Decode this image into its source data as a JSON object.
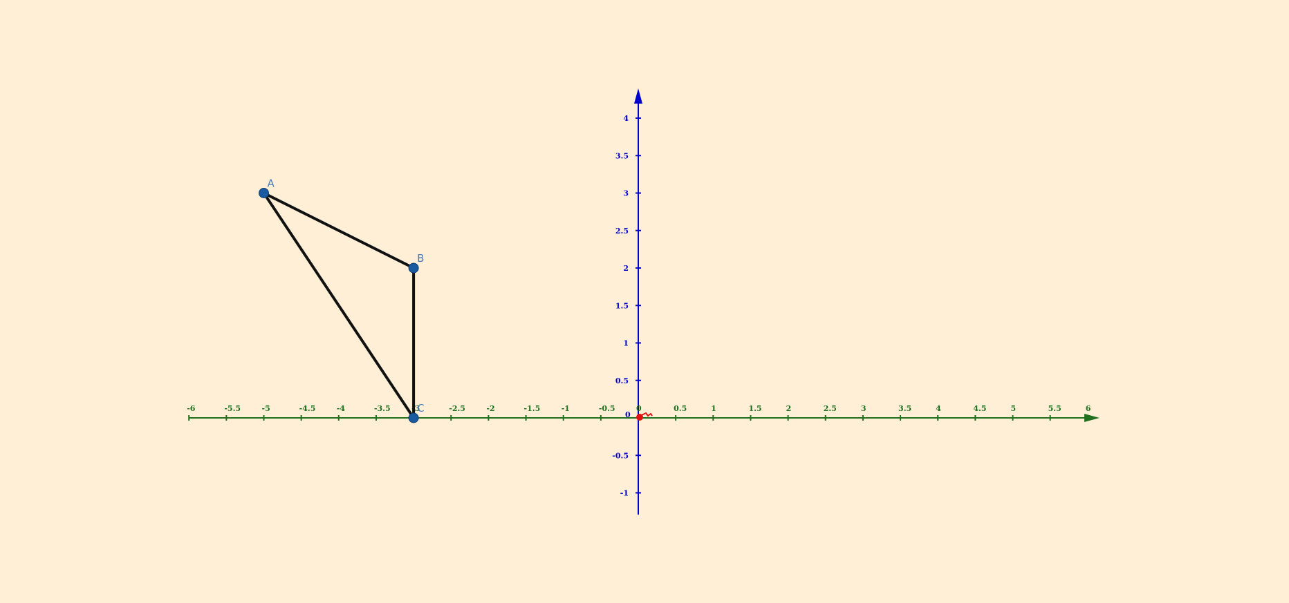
{
  "diagram": {
    "x_axis": {
      "min": -6,
      "max": 6,
      "step": 0.5,
      "tick_labels": [
        "-6",
        "-5.5",
        "-5",
        "-4.5",
        "-4",
        "-3.5",
        "-3",
        "-2.5",
        "-2",
        "-1.5",
        "-1",
        "-0.5",
        "0",
        "0.5",
        "1",
        "1.5",
        "2",
        "2.5",
        "3",
        "3.5",
        "4",
        "4.5",
        "5",
        "5.5",
        "6"
      ],
      "color": "#1F6F1F"
    },
    "y_axis": {
      "min": -1,
      "max": 4,
      "step": 0.5,
      "tick_labels": [
        "-1",
        "-0.5",
        "0.5",
        "1",
        "1.5",
        "2",
        "2.5",
        "3",
        "3.5",
        "4"
      ],
      "color": "#0000CC"
    },
    "origin_label": "0",
    "points": [
      {
        "name": "A",
        "x": -5,
        "y": 3
      },
      {
        "name": "B",
        "x": -3,
        "y": 2
      },
      {
        "name": "C",
        "x": -3,
        "y": 0
      }
    ],
    "triangle": [
      "A",
      "B",
      "C"
    ],
    "point_color": "#1A5AA0",
    "origin_marker_color": "#DD1111",
    "background": "#FFEFD6"
  }
}
